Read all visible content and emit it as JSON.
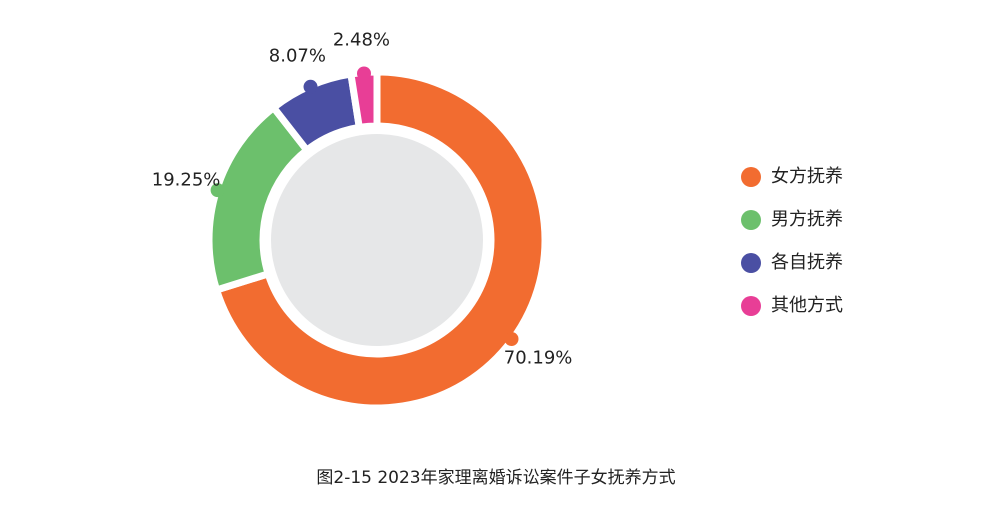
{
  "chart_data": {
    "type": "pie",
    "donut": true,
    "title": "图2-15  2023年家理离婚诉讼案件子女抚养方式",
    "categories": [
      "女方抚养",
      "男方抚养",
      "各自抚养",
      "其他方式"
    ],
    "values": [
      70.19,
      19.25,
      8.07,
      2.48
    ],
    "value_labels": [
      "70.19%",
      "19.25%",
      "8.07%",
      "2.48%"
    ],
    "colors": [
      "#f26c30",
      "#6cc06c",
      "#4a4fa3",
      "#e83e96"
    ],
    "legend": "right"
  }
}
